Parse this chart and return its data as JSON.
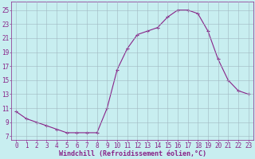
{
  "x": [
    0,
    1,
    2,
    3,
    4,
    5,
    6,
    7,
    8,
    9,
    10,
    11,
    12,
    13,
    14,
    15,
    16,
    17,
    18,
    19,
    20,
    21,
    22,
    23
  ],
  "y": [
    10.5,
    9.5,
    9.0,
    8.5,
    8.0,
    7.5,
    7.5,
    7.5,
    7.5,
    11.0,
    16.5,
    19.5,
    21.5,
    22.0,
    22.5,
    24.0,
    25.0,
    25.0,
    24.5,
    22.0,
    18.0,
    15.0,
    13.5,
    13.0
  ],
  "line_color": "#882288",
  "marker": "+",
  "bg_color": "#c8eef0",
  "grid_color": "#a0b8c0",
  "xlabel": "Windchill (Refroidissement éolien,°C)",
  "xlabel_color": "#882288",
  "yticks": [
    7,
    9,
    11,
    13,
    15,
    17,
    19,
    21,
    23,
    25
  ],
  "xticks": [
    0,
    1,
    2,
    3,
    4,
    5,
    6,
    7,
    8,
    9,
    10,
    11,
    12,
    13,
    14,
    15,
    16,
    17,
    18,
    19,
    20,
    21,
    22,
    23
  ],
  "ylim": [
    6.5,
    26.2
  ],
  "xlim": [
    -0.5,
    23.5
  ],
  "tick_color": "#882288",
  "font_size": 5.5,
  "xlabel_fontsize": 6.0,
  "line_width": 0.8,
  "marker_size": 2.5
}
